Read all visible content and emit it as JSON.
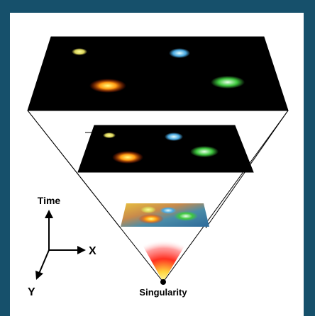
{
  "diagram": {
    "labels": {
      "time": "Time",
      "x": "X",
      "y": "Y",
      "singularity": "Singularity"
    },
    "colors": {
      "frame": "#16506b",
      "background": "#ffffff",
      "plane": "#000000",
      "outline": "#000000"
    }
  }
}
